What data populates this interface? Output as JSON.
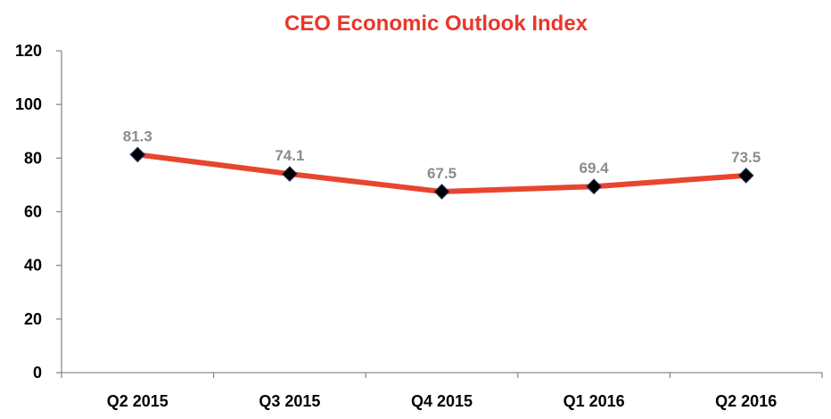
{
  "colors": {
    "title": "#e8372b",
    "line": "#e8452f",
    "marker": "#000000",
    "marker_outline": "#1f2a55",
    "data_label": "#8c8c8c",
    "axis": "#8a8a8a"
  },
  "chart_data": {
    "type": "line",
    "title": "CEO Economic Outlook Index",
    "xlabel": "",
    "ylabel": "",
    "categories": [
      "Q2 2015",
      "Q3 2015",
      "Q4 2015",
      "Q1 2016",
      "Q2 2016"
    ],
    "series": [
      {
        "values": [
          81.3,
          74.1,
          67.5,
          69.4,
          73.5
        ],
        "labels": [
          "81.3",
          "74.1",
          "67.5",
          "69.4",
          "73.5"
        ],
        "marker": "diamond"
      }
    ],
    "ylim": [
      0,
      120
    ],
    "yticks": [
      0,
      20,
      40,
      60,
      80,
      100,
      120
    ],
    "grid": false,
    "legend": "none"
  }
}
